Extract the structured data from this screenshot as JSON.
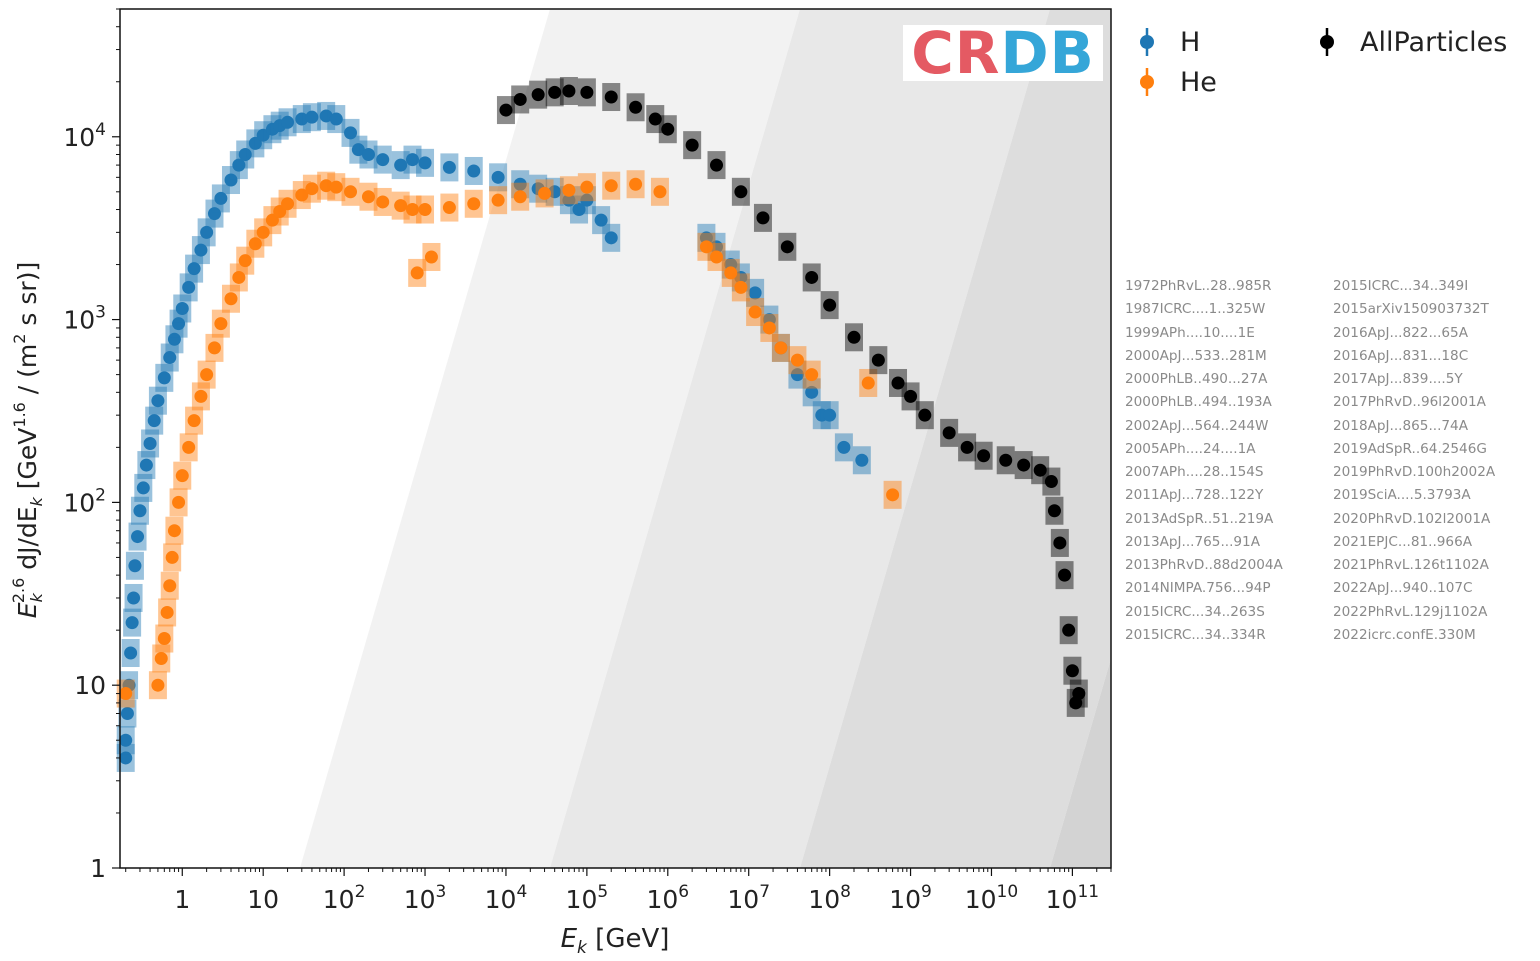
{
  "chart_data": {
    "type": "scatter",
    "title": "",
    "xlabel_parts": [
      "E",
      "k",
      " [GeV]"
    ],
    "ylabel_parts": [
      "E",
      "k",
      "2.6",
      " dJ/dE",
      "k",
      " [GeV",
      "1.6",
      " / (m",
      "2",
      " s sr)]"
    ],
    "xscale": "log",
    "yscale": "log",
    "xlim": [
      0.17,
      300000000000
    ],
    "ylim": [
      1,
      50000
    ],
    "x_ticks": [
      {
        "value": 1,
        "base": "1",
        "exp": ""
      },
      {
        "value": 10,
        "base": "10",
        "exp": ""
      },
      {
        "value": 100,
        "base": "10",
        "exp": "2"
      },
      {
        "value": 1000,
        "base": "10",
        "exp": "3"
      },
      {
        "value": 10000,
        "base": "10",
        "exp": "4"
      },
      {
        "value": 100000,
        "base": "10",
        "exp": "5"
      },
      {
        "value": 1000000,
        "base": "10",
        "exp": "6"
      },
      {
        "value": 10000000,
        "base": "10",
        "exp": "7"
      },
      {
        "value": 100000000,
        "base": "10",
        "exp": "8"
      },
      {
        "value": 1000000000,
        "base": "10",
        "exp": "9"
      },
      {
        "value": 10000000000,
        "base": "10",
        "exp": "10"
      },
      {
        "value": 100000000000,
        "base": "10",
        "exp": "11"
      }
    ],
    "y_ticks": [
      {
        "value": 1,
        "base": "1",
        "exp": ""
      },
      {
        "value": 10,
        "base": "10",
        "exp": ""
      },
      {
        "value": 100,
        "base": "10",
        "exp": "2"
      },
      {
        "value": 1000,
        "base": "10",
        "exp": "3"
      },
      {
        "value": 10000,
        "base": "10",
        "exp": "4"
      }
    ],
    "background_bands": [
      "#ffffff",
      "#f2f2f2",
      "#e8e8e8",
      "#dddddd",
      "#d3d3d3",
      "#c9c9c9"
    ],
    "series": [
      {
        "name": "H",
        "color": "#1f77b4",
        "points": [
          [
            0.2,
            4
          ],
          [
            0.2,
            5
          ],
          [
            0.21,
            7
          ],
          [
            0.22,
            10
          ],
          [
            0.23,
            15
          ],
          [
            0.24,
            22
          ],
          [
            0.25,
            30
          ],
          [
            0.26,
            45
          ],
          [
            0.28,
            65
          ],
          [
            0.3,
            90
          ],
          [
            0.33,
            120
          ],
          [
            0.36,
            160
          ],
          [
            0.4,
            210
          ],
          [
            0.45,
            280
          ],
          [
            0.5,
            360
          ],
          [
            0.6,
            480
          ],
          [
            0.7,
            620
          ],
          [
            0.8,
            780
          ],
          [
            0.9,
            950
          ],
          [
            1.0,
            1150
          ],
          [
            1.2,
            1500
          ],
          [
            1.4,
            1900
          ],
          [
            1.7,
            2400
          ],
          [
            2.0,
            3000
          ],
          [
            2.5,
            3800
          ],
          [
            3.0,
            4600
          ],
          [
            4.0,
            5800
          ],
          [
            5.0,
            7000
          ],
          [
            6.0,
            8000
          ],
          [
            8.0,
            9200
          ],
          [
            10,
            10200
          ],
          [
            13,
            11000
          ],
          [
            16,
            11500
          ],
          [
            20,
            12000
          ],
          [
            30,
            12500
          ],
          [
            40,
            12800
          ],
          [
            60,
            13000
          ],
          [
            80,
            12500
          ],
          [
            120,
            10500
          ],
          [
            150,
            8500
          ],
          [
            200,
            8000
          ],
          [
            300,
            7500
          ],
          [
            500,
            7000
          ],
          [
            700,
            7500
          ],
          [
            1000,
            7200
          ],
          [
            2000,
            6800
          ],
          [
            4000,
            6500
          ],
          [
            8000,
            6000
          ],
          [
            15000,
            5500
          ],
          [
            25000,
            5200
          ],
          [
            40000,
            5000
          ],
          [
            60000,
            4500
          ],
          [
            80000,
            4000
          ],
          [
            100000,
            4500
          ],
          [
            150000,
            3500
          ],
          [
            200000,
            2800
          ],
          [
            3000000,
            2800
          ],
          [
            4000000,
            2500
          ],
          [
            6000000,
            2000
          ],
          [
            8000000,
            1700
          ],
          [
            12000000,
            1400
          ],
          [
            18000000,
            1000
          ],
          [
            25000000,
            700
          ],
          [
            40000000,
            500
          ],
          [
            60000000,
            400
          ],
          [
            80000000,
            300
          ],
          [
            100000000,
            300
          ],
          [
            150000000,
            200
          ],
          [
            250000000,
            170
          ],
          [
            0.2,
            0.0
          ]
        ]
      },
      {
        "name": "He",
        "color": "#ff7f0e",
        "points": [
          [
            0.2,
            9
          ],
          [
            0.5,
            10
          ],
          [
            0.55,
            14
          ],
          [
            0.6,
            18
          ],
          [
            0.65,
            25
          ],
          [
            0.7,
            35
          ],
          [
            0.75,
            50
          ],
          [
            0.8,
            70
          ],
          [
            0.9,
            100
          ],
          [
            1.0,
            140
          ],
          [
            1.2,
            200
          ],
          [
            1.4,
            280
          ],
          [
            1.7,
            380
          ],
          [
            2.0,
            500
          ],
          [
            2.5,
            700
          ],
          [
            3.0,
            950
          ],
          [
            4.0,
            1300
          ],
          [
            5.0,
            1700
          ],
          [
            6.0,
            2100
          ],
          [
            8.0,
            2600
          ],
          [
            10,
            3000
          ],
          [
            13,
            3500
          ],
          [
            16,
            3900
          ],
          [
            20,
            4300
          ],
          [
            30,
            4800
          ],
          [
            40,
            5200
          ],
          [
            60,
            5400
          ],
          [
            80,
            5300
          ],
          [
            120,
            5000
          ],
          [
            200,
            4700
          ],
          [
            300,
            4400
          ],
          [
            500,
            4200
          ],
          [
            700,
            4000
          ],
          [
            800,
            1800
          ],
          [
            1200,
            2200
          ],
          [
            1000,
            4000
          ],
          [
            2000,
            4100
          ],
          [
            4000,
            4300
          ],
          [
            8000,
            4500
          ],
          [
            15000,
            4700
          ],
          [
            30000,
            4900
          ],
          [
            60000,
            5100
          ],
          [
            100000,
            5300
          ],
          [
            200000,
            5400
          ],
          [
            400000,
            5500
          ],
          [
            800000,
            5000
          ],
          [
            3000000,
            2500
          ],
          [
            4000000,
            2200
          ],
          [
            6000000,
            1800
          ],
          [
            8000000,
            1500
          ],
          [
            12000000,
            1100
          ],
          [
            18000000,
            900
          ],
          [
            25000000,
            700
          ],
          [
            40000000,
            600
          ],
          [
            60000000,
            500
          ],
          [
            300000000,
            450
          ],
          [
            600000000,
            110
          ]
        ]
      },
      {
        "name": "AllParticles",
        "color": "#000000",
        "points": [
          [
            10000,
            14000
          ],
          [
            15000,
            16000
          ],
          [
            25000,
            17000
          ],
          [
            40000,
            17500
          ],
          [
            60000,
            17800
          ],
          [
            100000,
            17500
          ],
          [
            200000,
            16500
          ],
          [
            400000,
            14500
          ],
          [
            700000,
            12500
          ],
          [
            1000000,
            11000
          ],
          [
            2000000,
            9000
          ],
          [
            4000000,
            7000
          ],
          [
            8000000,
            5000
          ],
          [
            15000000,
            3600
          ],
          [
            30000000,
            2500
          ],
          [
            60000000,
            1700
          ],
          [
            100000000,
            1200
          ],
          [
            200000000,
            800
          ],
          [
            400000000,
            600
          ],
          [
            700000000,
            450
          ],
          [
            1000000000,
            380
          ],
          [
            1500000000,
            300
          ],
          [
            3000000000,
            240
          ],
          [
            5000000000,
            200
          ],
          [
            8000000000,
            180
          ],
          [
            15000000000,
            170
          ],
          [
            25000000000,
            160
          ],
          [
            40000000000,
            150
          ],
          [
            55000000000,
            130
          ],
          [
            60000000000,
            90
          ],
          [
            70000000000,
            60
          ],
          [
            80000000000,
            40
          ],
          [
            90000000000,
            20
          ],
          [
            100000000000,
            12
          ],
          [
            110000000000,
            8
          ],
          [
            120000000000,
            9
          ]
        ]
      }
    ],
    "legend": [
      {
        "label": "H",
        "color": "#1f77b4"
      },
      {
        "label": "He",
        "color": "#ff7f0e"
      },
      {
        "label": "AllParticles",
        "color": "#000000"
      }
    ],
    "logo": "CRDB",
    "references_left": [
      "1972PhRvL..28..985R",
      "1987ICRC....1..325W",
      "1999APh....10....1E",
      "2000ApJ...533..281M",
      "2000PhLB..490...27A",
      "2000PhLB..494..193A",
      "2002ApJ...564..244W",
      "2005APh....24....1A",
      "2007APh....28..154S",
      "2011ApJ...728..122Y",
      "2013AdSpR..51..219A",
      "2013ApJ...765...91A",
      "2013PhRvD..88d2004A",
      "2014NIMPA.756...94P",
      "2015ICRC...34..263S",
      "2015ICRC...34..334R"
    ],
    "references_right": [
      "2015ICRC...34..349I",
      "2015arXiv150903732T",
      "2016ApJ...822...65A",
      "2016ApJ...831...18C",
      "2017ApJ...839....5Y",
      "2017PhRvD..96l2001A",
      "2018ApJ...865...74A",
      "2019AdSpR..64.2546G",
      "2019PhRvD.100h2002A",
      "2019SciA....5.3793A",
      "2020PhRvD.102l2001A",
      "2021EPJC...81..966A",
      "2021PhRvL.126t1102A",
      "2022ApJ...940..107C",
      "2022PhRvL.129j1102A",
      "2022icrc.confE.330M"
    ]
  }
}
